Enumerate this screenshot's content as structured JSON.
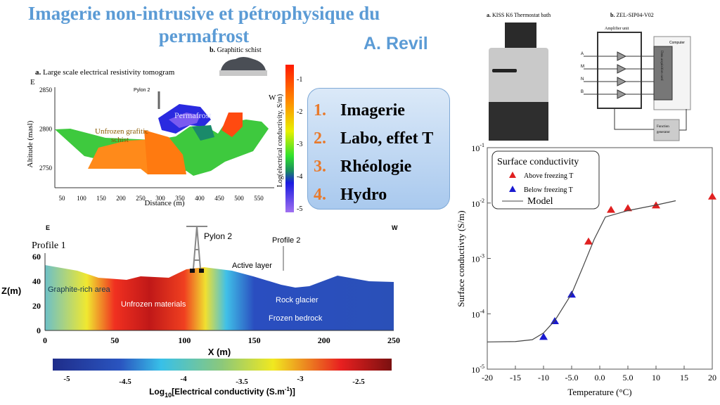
{
  "slide": {
    "title_line1": "Imagerie non-intrusive et pétrophysique du",
    "title_line2": "permafrost",
    "author": "A. Revil",
    "accent": "#5b9bd5",
    "number_color": "#e87a2c"
  },
  "outline": [
    {
      "num": "1.",
      "label": "Imagerie"
    },
    {
      "num": "2.",
      "label": "Labo, effet T"
    },
    {
      "num": "3.",
      "label": "Rhéologie"
    },
    {
      "num": "4.",
      "label": "Hydro"
    }
  ],
  "tomogram_top": {
    "caption_prefix": "a.",
    "caption": "Large scale electrical resistivity tomogram",
    "photo_caption_prefix": "b.",
    "photo_caption": "Graphitic schist",
    "east": "E",
    "west": "W",
    "pylon": "Pylon 2",
    "zone_permafrost": "Permafrost",
    "zone_unfrozen_1": "Unfrozen grafitic",
    "zone_unfrozen_2": "schist",
    "xlabel": "Distance (m)",
    "ylabel": "Altitude (masl)",
    "x_ticks": [
      "50",
      "100",
      "150",
      "200",
      "250",
      "300",
      "350",
      "400",
      "450",
      "500",
      "550"
    ],
    "y_ticks": [
      "2850",
      "2800",
      "2750"
    ],
    "colorbar_label": "Log(electrical conductivity, S/m)",
    "colorbar_ticks": [
      "-1",
      "-2",
      "-3",
      "-4",
      "-5"
    ]
  },
  "tomogram_bottom": {
    "east": "E",
    "west": "W",
    "profile1": "Profile 1",
    "profile2": "Profile 2",
    "pylon": "Pylon 2",
    "active_layer": "Active layer",
    "graphite": "Graphite-rich area",
    "unfrozen": "Unfrozen materials",
    "rock_glacier": "Rock glacier",
    "frozen_bedrock": "Frozen bedrock",
    "ylabel": "Z(m)",
    "xlabel": "X (m)",
    "x_ticks": [
      "0",
      "50",
      "100",
      "150",
      "200",
      "250"
    ],
    "y_ticks": [
      "60",
      "40",
      "20",
      "0"
    ],
    "colorbar_ticks": [
      "-5",
      "-4.5",
      "-4",
      "-3.5",
      "-3",
      "-2.5"
    ],
    "colorbar_label_pre": "Log",
    "colorbar_label_sub": "10",
    "colorbar_label_mid": "[Electrical conductivity (S.m",
    "colorbar_label_sup": "-1",
    "colorbar_label_post": ")]"
  },
  "lab": {
    "bath_prefix": "a.",
    "bath_caption": "KISS K6 Thermostat bath",
    "device_prefix": "b.",
    "device_caption": "ZEL-SIP04-V02",
    "amplifier": "Amplifier unit",
    "computer": "Computer",
    "daq": "Data acquisition card",
    "function_gen_1": "Function",
    "function_gen_2": "generator",
    "channels": [
      "A",
      "M",
      "N",
      "B"
    ]
  },
  "chart_data": {
    "type": "scatter",
    "xlabel": "Temperature (°C)",
    "ylabel": "Surface conductivty (S/m)",
    "xlim": [
      -20,
      20
    ],
    "ylim": [
      1e-05,
      0.1
    ],
    "y_scale": "log",
    "x_ticks": [
      "-20",
      "-15",
      "-10",
      "-5.0",
      "0.0",
      "5.0",
      "10",
      "15",
      "20"
    ],
    "y_tick_exponents": [
      -5,
      -4,
      -3,
      -2,
      -1
    ],
    "legend": {
      "title": "Surface conductivity",
      "placement": "top-left"
    },
    "series": [
      {
        "name": "Above freezing T",
        "marker": "triangle",
        "color": "#e02020",
        "x": [
          -2,
          2,
          5,
          10,
          20
        ],
        "y": [
          0.002,
          0.0075,
          0.008,
          0.009,
          0.013
        ]
      },
      {
        "name": "Below freezing T",
        "marker": "triangle",
        "color": "#1a1ad0",
        "x": [
          -10,
          -8,
          -5
        ],
        "y": [
          3.8e-05,
          7.3e-05,
          0.00022
        ]
      },
      {
        "name": "Model",
        "marker": "line",
        "color": "#444444",
        "x": [
          -20,
          -15,
          -12,
          -10,
          -8,
          -5,
          -3,
          -1,
          1,
          5,
          10,
          13.5
        ],
        "y": [
          3.1e-05,
          3.15e-05,
          3.4e-05,
          4.5e-05,
          7.5e-05,
          0.00023,
          0.0007,
          0.0022,
          0.0056,
          0.0073,
          0.0092,
          0.011
        ]
      }
    ]
  }
}
